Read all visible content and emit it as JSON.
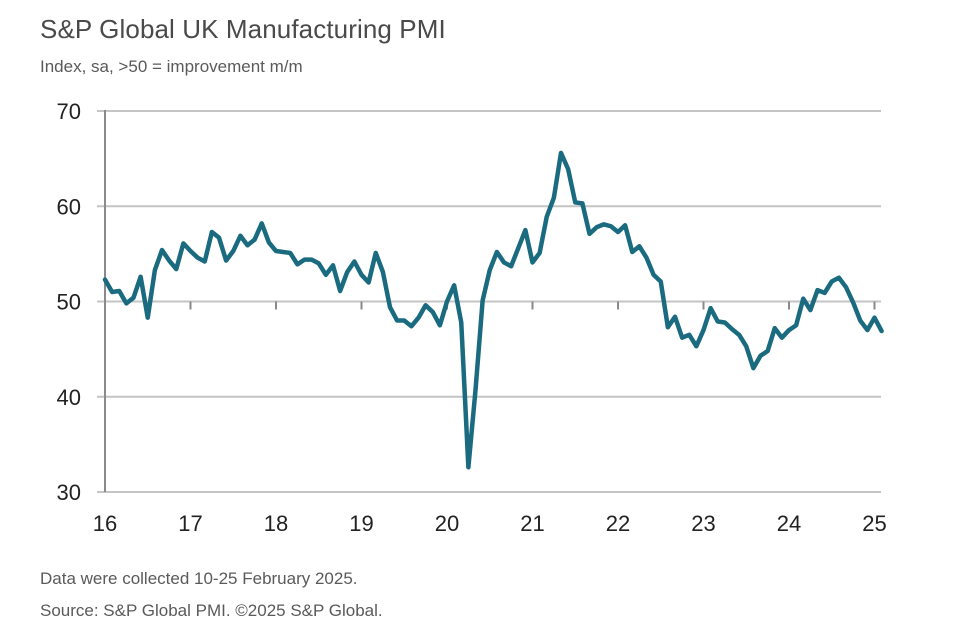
{
  "chart_data": {
    "type": "line",
    "title": "S&P Global UK Manufacturing PMI",
    "subtitle": "Index, sa, >50 = improvement m/m",
    "xlabel": "",
    "ylabel": "",
    "ylim": [
      30,
      70
    ],
    "yticks": [
      30,
      40,
      50,
      60,
      70
    ],
    "reference_line": 50,
    "xlim": [
      "2016-01",
      "2025-02"
    ],
    "xtick_labels": [
      "16",
      "17",
      "18",
      "19",
      "20",
      "21",
      "22",
      "23",
      "24",
      "25"
    ],
    "grid": true,
    "frequency": "monthly",
    "start": "2016-01",
    "series": [
      {
        "name": "UK Manufacturing PMI",
        "color": "#1a6b80",
        "values": [
          52.3,
          51.0,
          51.1,
          49.8,
          50.4,
          52.6,
          48.3,
          53.3,
          55.4,
          54.3,
          53.4,
          56.1,
          55.3,
          54.6,
          54.2,
          57.3,
          56.7,
          54.3,
          55.3,
          56.9,
          55.9,
          56.5,
          58.2,
          56.2,
          55.3,
          55.2,
          55.1,
          53.9,
          54.4,
          54.4,
          54.0,
          52.8,
          53.8,
          51.1,
          53.1,
          54.2,
          52.8,
          52.0,
          55.1,
          53.1,
          49.4,
          48.0,
          48.0,
          47.4,
          48.3,
          49.6,
          48.9,
          47.5,
          50.0,
          51.7,
          47.8,
          32.6,
          40.7,
          50.1,
          53.3,
          55.2,
          54.1,
          53.7,
          55.6,
          57.5,
          54.1,
          55.1,
          58.9,
          60.9,
          65.6,
          63.9,
          60.4,
          60.3,
          57.1,
          57.8,
          58.1,
          57.9,
          57.3,
          58.0,
          55.2,
          55.8,
          54.6,
          52.8,
          52.1,
          47.3,
          48.4,
          46.2,
          46.5,
          45.3,
          47.0,
          49.3,
          47.9,
          47.8,
          47.1,
          46.5,
          45.3,
          43.0,
          44.3,
          44.8,
          47.2,
          46.2,
          47.0,
          47.5,
          50.3,
          49.1,
          51.2,
          50.9,
          52.1,
          52.5,
          51.5,
          49.9,
          48.0,
          47.0,
          48.3,
          46.9
        ]
      }
    ]
  },
  "footnotes": {
    "collection": "Data were collected 10-25 February 2025.",
    "source": "Source: S&P Global PMI. ©2025 S&P Global."
  },
  "colors": {
    "line": "#1a6b80",
    "grid": "#c4c4c4",
    "axis": "#8a8a8a"
  }
}
